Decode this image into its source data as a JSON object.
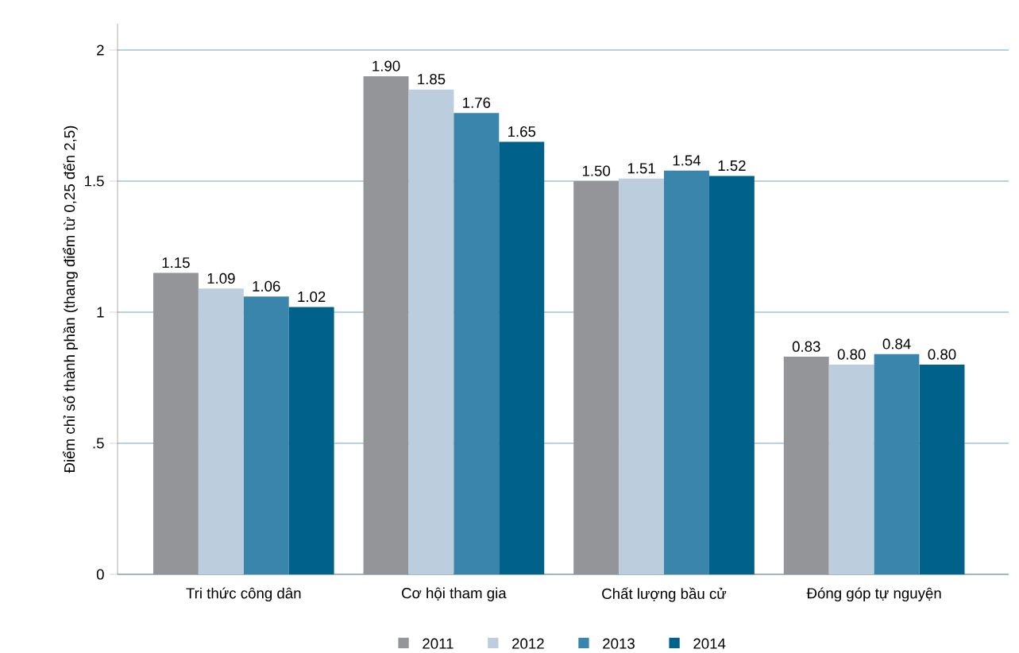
{
  "chart_data": {
    "type": "bar",
    "ylabel": "Điểm chỉ số thành phần (thang điểm từ 0,25 đến 2,5)",
    "categories": [
      "Tri thức công dân",
      "Cơ hội tham gia",
      "Chất lượng bầu cử",
      "Đóng góp tự nguyện"
    ],
    "series": [
      {
        "name": "2011",
        "color": "#939598",
        "values": [
          1.15,
          1.9,
          1.5,
          0.83
        ],
        "value_labels": [
          "1.15",
          "1.90",
          "1.50",
          "0.83"
        ]
      },
      {
        "name": "2012",
        "color": "#bccddd",
        "values": [
          1.09,
          1.85,
          1.51,
          0.8
        ],
        "value_labels": [
          "1.09",
          "1.85",
          "1.51",
          "0.80"
        ]
      },
      {
        "name": "2013",
        "color": "#3a85ab",
        "values": [
          1.06,
          1.76,
          1.54,
          0.84
        ],
        "value_labels": [
          "1.06",
          "1.76",
          "1.54",
          "0.84"
        ]
      },
      {
        "name": "2014",
        "color": "#00628b",
        "values": [
          1.02,
          1.65,
          1.52,
          0.8
        ],
        "value_labels": [
          "1.02",
          "1.65",
          "1.52",
          "0.80"
        ]
      }
    ],
    "ylim": [
      0,
      2.1
    ],
    "yticks": [
      0,
      {
        "value": 0.5,
        "label": ".5"
      },
      1,
      1.5,
      2
    ],
    "grid": "y",
    "legend": "bottom"
  }
}
